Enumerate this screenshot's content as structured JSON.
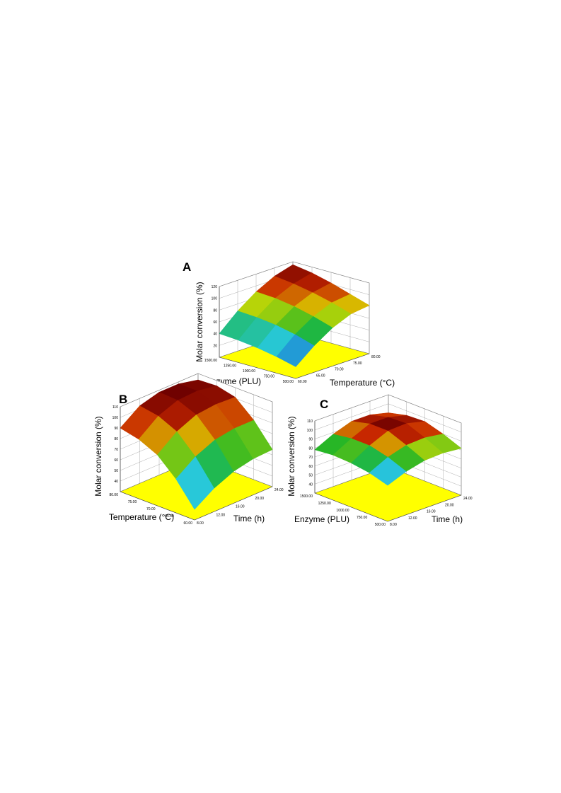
{
  "chart_data": [
    {
      "type": "surface",
      "panel": "A",
      "zlabel": "Molar conversion (%)",
      "xlabel": "Enzyme (PLU)",
      "ylabel": "Temperature (°C)",
      "xlim": [
        500,
        1500
      ],
      "ylim": [
        60,
        80
      ],
      "zlim": [
        0,
        120
      ],
      "xticks": [
        {
          "value": 500,
          "label": "500.00"
        },
        {
          "value": 750,
          "label": "750.00"
        },
        {
          "value": 1000,
          "label": "1000.00"
        },
        {
          "value": 1250,
          "label": "1250.00"
        },
        {
          "value": 1500,
          "label": "1500.00"
        }
      ],
      "yticks": [
        {
          "value": 60,
          "label": "60.00"
        },
        {
          "value": 65,
          "label": "65.00"
        },
        {
          "value": 70,
          "label": "70.00"
        },
        {
          "value": 75,
          "label": "75.00"
        },
        {
          "value": 80,
          "label": "80.00"
        }
      ],
      "zticks": [
        20,
        40,
        60,
        80,
        100,
        120
      ],
      "x": [
        500,
        750,
        1000,
        1250,
        1500
      ],
      "y": [
        60,
        65,
        70,
        75,
        80
      ],
      "z": [
        [
          20,
          45,
          65,
          78,
          82
        ],
        [
          28,
          55,
          75,
          88,
          92
        ],
        [
          34,
          62,
          83,
          96,
          102
        ],
        [
          38,
          66,
          88,
          102,
          110
        ],
        [
          40,
          68,
          90,
          106,
          115
        ]
      ]
    },
    {
      "type": "surface",
      "panel": "B",
      "zlabel": "Molar conversion (%)",
      "xlabel": "Temperature (°C)",
      "ylabel": "Time (h)",
      "xlim": [
        60,
        80
      ],
      "ylim": [
        8,
        24
      ],
      "zlim": [
        30,
        110
      ],
      "xticks": [
        {
          "value": 60,
          "label": "60.00"
        },
        {
          "value": 65,
          "label": "65.00"
        },
        {
          "value": 70,
          "label": "70.00"
        },
        {
          "value": 75,
          "label": "75.00"
        },
        {
          "value": 80,
          "label": "80.00"
        }
      ],
      "yticks": [
        {
          "value": 8,
          "label": "8.00"
        },
        {
          "value": 12,
          "label": "12.00"
        },
        {
          "value": 16,
          "label": "16.00"
        },
        {
          "value": 20,
          "label": "20.00"
        },
        {
          "value": 24,
          "label": "24.00"
        }
      ],
      "zticks": [
        40,
        50,
        60,
        70,
        80,
        90,
        100,
        110
      ],
      "x": [
        60,
        65,
        70,
        75,
        80
      ],
      "y": [
        8,
        12,
        16,
        20,
        24
      ],
      "z": [
        [
          40,
          52,
          60,
          64,
          65
        ],
        [
          62,
          75,
          83,
          86,
          86
        ],
        [
          78,
          92,
          100,
          102,
          101
        ],
        [
          86,
          100,
          107,
          108,
          105
        ],
        [
          90,
          103,
          108,
          108,
          104
        ]
      ]
    },
    {
      "type": "surface",
      "panel": "C",
      "zlabel": "Molar conversion (%)",
      "xlabel": "Enzyme (PLU)",
      "ylabel": "Time (h)",
      "xlim": [
        500,
        1500
      ],
      "ylim": [
        8,
        24
      ],
      "zlim": [
        30,
        110
      ],
      "xticks": [
        {
          "value": 500,
          "label": "500.00"
        },
        {
          "value": 750,
          "label": "750.00"
        },
        {
          "value": 1000,
          "label": "1000.00"
        },
        {
          "value": 1250,
          "label": "1250.00"
        },
        {
          "value": 1500,
          "label": "1500.00"
        }
      ],
      "yticks": [
        {
          "value": 8,
          "label": "8.00"
        },
        {
          "value": 12,
          "label": "12.00"
        },
        {
          "value": 16,
          "label": "16.00"
        },
        {
          "value": 20,
          "label": "20.00"
        },
        {
          "value": 24,
          "label": "24.00"
        }
      ],
      "zticks": [
        40,
        50,
        60,
        70,
        80,
        90,
        100,
        110
      ],
      "x": [
        500,
        750,
        1000,
        1250,
        1500
      ],
      "y": [
        8,
        12,
        16,
        20,
        24
      ],
      "z": [
        [
          70,
          78,
          83,
          84,
          82
        ],
        [
          76,
          86,
          92,
          93,
          90
        ],
        [
          79,
          91,
          100,
          101,
          96
        ],
        [
          80,
          91,
          100,
          100,
          95
        ],
        [
          78,
          88,
          95,
          95,
          90
        ]
      ]
    }
  ]
}
